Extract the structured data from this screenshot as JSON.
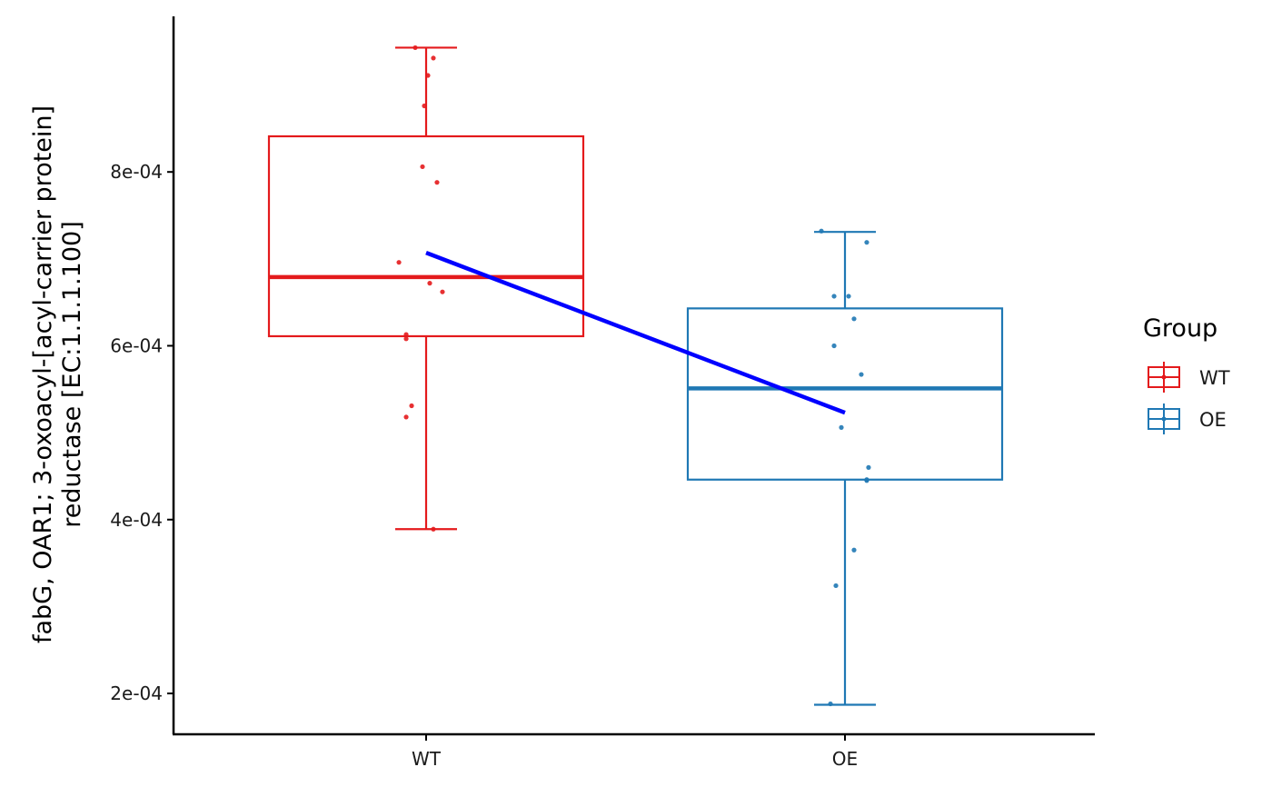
{
  "chart_data": {
    "type": "box",
    "categories": [
      "WT",
      "OE"
    ],
    "ylabel_lines": [
      "fabG, OAR1; 3-oxoacyl-[acyl-carrier protein]",
      "reductase [EC:1.1.1.100]"
    ],
    "xlabel": "",
    "ylim": [
      0.000153,
      0.000979
    ],
    "y_ticks": [
      0.0002,
      0.0004,
      0.0006,
      0.0008
    ],
    "y_tick_labels": [
      "2e-04",
      "4e-04",
      "6e-04",
      "8e-04"
    ],
    "grid": false,
    "legend": {
      "title": "Group",
      "position": "right",
      "entries": [
        "WT",
        "OE"
      ]
    },
    "colors": {
      "WT": "#e41a1c",
      "OE": "#1f78b4",
      "trend": "#0000ff"
    },
    "groups": [
      {
        "name": "WT",
        "whisker_low": 0.000389,
        "q1": 0.000611,
        "median": 0.000679,
        "q3": 0.000841,
        "whisker_high": 0.000943,
        "mean": 0.000707,
        "points": [
          [
            -0.06,
            0.000943
          ],
          [
            0.04,
            0.000931
          ],
          [
            0.01,
            0.000911
          ],
          [
            -0.01,
            0.000876
          ],
          [
            -0.02,
            0.000806
          ],
          [
            0.06,
            0.000788
          ],
          [
            -0.15,
            0.000696
          ],
          [
            0.02,
            0.000672
          ],
          [
            0.09,
            0.000662
          ],
          [
            -0.11,
            0.000613
          ],
          [
            -0.11,
            0.000608
          ],
          [
            -0.08,
            0.000531
          ],
          [
            -0.11,
            0.000518
          ],
          [
            0.04,
            0.000389
          ]
        ]
      },
      {
        "name": "OE",
        "whisker_low": 0.000187,
        "q1": 0.000446,
        "median": 0.000551,
        "q3": 0.000643,
        "whisker_high": 0.000731,
        "mean": 0.000523,
        "points": [
          [
            -0.13,
            0.000732
          ],
          [
            0.12,
            0.000719
          ],
          [
            -0.06,
            0.000657
          ],
          [
            0.02,
            0.000657
          ],
          [
            0.05,
            0.000631
          ],
          [
            -0.06,
            0.0006
          ],
          [
            0.09,
            0.000567
          ],
          [
            -0.02,
            0.000506
          ],
          [
            0.13,
            0.00046
          ],
          [
            0.12,
            0.000446
          ],
          [
            0.12,
            0.000445
          ],
          [
            0.05,
            0.000365
          ],
          [
            -0.05,
            0.000324
          ],
          [
            -0.08,
            0.000188
          ]
        ]
      }
    ]
  }
}
